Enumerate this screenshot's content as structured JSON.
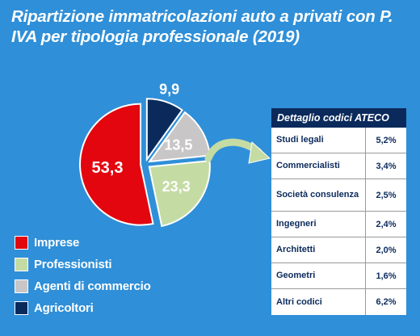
{
  "title": "Ripartizione immatricolazioni auto a privati con P. IVA per tipologia professionale (2019)",
  "chart_data": {
    "type": "pie",
    "categories": [
      "Imprese",
      "Professionisti",
      "Agenti di commercio",
      "Agricoltori"
    ],
    "values": [
      53.3,
      23.3,
      13.5,
      9.9
    ],
    "value_labels": [
      "53,3",
      "23,3",
      "13,5",
      "9,9"
    ],
    "colors": [
      "#e3060f",
      "#c5dba4",
      "#c8c6c7",
      "#0b2a5c"
    ],
    "exploded": true,
    "legend_position": "bottom-left"
  },
  "legend": [
    {
      "label": "Imprese",
      "color": "#e3060f"
    },
    {
      "label": "Professionisti",
      "color": "#c5dba4"
    },
    {
      "label": "Agenti di commercio",
      "color": "#c8c6c7"
    },
    {
      "label": "Agricoltori",
      "color": "#0b2a5c"
    }
  ],
  "ateco": {
    "header": "Dettaglio codici ATECO",
    "rows": [
      {
        "name": "Studi legali",
        "value": "5,2%"
      },
      {
        "name": "Commercialisti",
        "value": "3,4%"
      },
      {
        "name": "Società consulenza",
        "value": "2,5%"
      },
      {
        "name": "Ingegneri",
        "value": "2,4%"
      },
      {
        "name": "Architetti",
        "value": "2,0%"
      },
      {
        "name": "Geometri",
        "value": "1,6%"
      },
      {
        "name": "Altri codici",
        "value": "6,2%"
      }
    ]
  }
}
